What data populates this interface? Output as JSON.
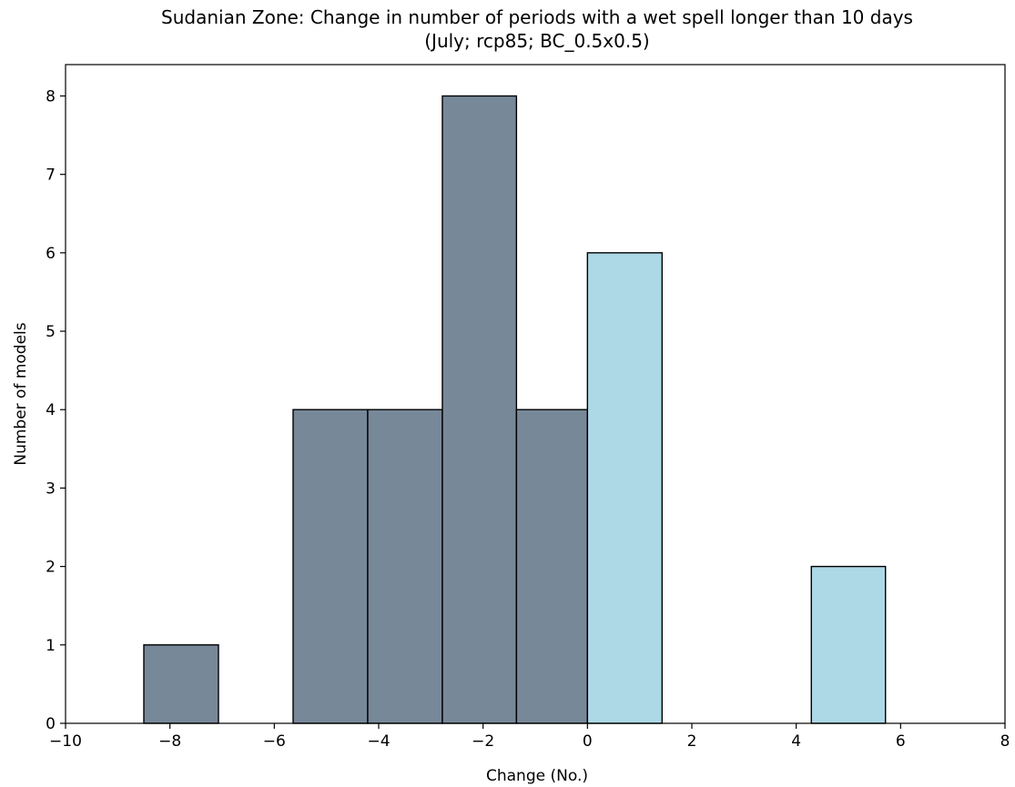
{
  "chart_data": {
    "type": "bar",
    "title": "Sudanian Zone: Change in number of periods with a wet spell longer than 10 days",
    "subtitle": "(July; rcp85; BC_0.5x0.5)",
    "xlabel": "Change (No.)",
    "ylabel": "Number of models",
    "xlim": [
      -10,
      8
    ],
    "ylim": [
      0,
      8.4
    ],
    "xticks": [
      -10,
      -8,
      -6,
      -4,
      -2,
      0,
      2,
      4,
      6,
      8
    ],
    "xtick_labels": [
      "−10",
      "−8",
      "−6",
      "−4",
      "−2",
      "0",
      "2",
      "4",
      "6",
      "8"
    ],
    "yticks": [
      0,
      1,
      2,
      3,
      4,
      5,
      6,
      7,
      8
    ],
    "ytick_labels": [
      "0",
      "1",
      "2",
      "3",
      "4",
      "5",
      "6",
      "7",
      "8"
    ],
    "bins": [
      {
        "x0": -8.5,
        "x1": -7.07,
        "count": 1
      },
      {
        "x0": -7.07,
        "x1": -5.64,
        "count": 0
      },
      {
        "x0": -5.64,
        "x1": -4.21,
        "count": 4
      },
      {
        "x0": -4.21,
        "x1": -2.78,
        "count": 4
      },
      {
        "x0": -2.78,
        "x1": -1.36,
        "count": 8
      },
      {
        "x0": -1.36,
        "x1": 0.0,
        "count": 4
      },
      {
        "x0": 0.0,
        "x1": 1.43,
        "count": 6
      },
      {
        "x0": 1.43,
        "x1": 2.86,
        "count": 0
      },
      {
        "x0": 2.86,
        "x1": 4.29,
        "count": 0
      },
      {
        "x0": 4.29,
        "x1": 5.71,
        "count": 2
      }
    ],
    "colors": {
      "negative": "#778899",
      "positive": "#add8e6",
      "edge": "#000000"
    },
    "grid": false
  }
}
